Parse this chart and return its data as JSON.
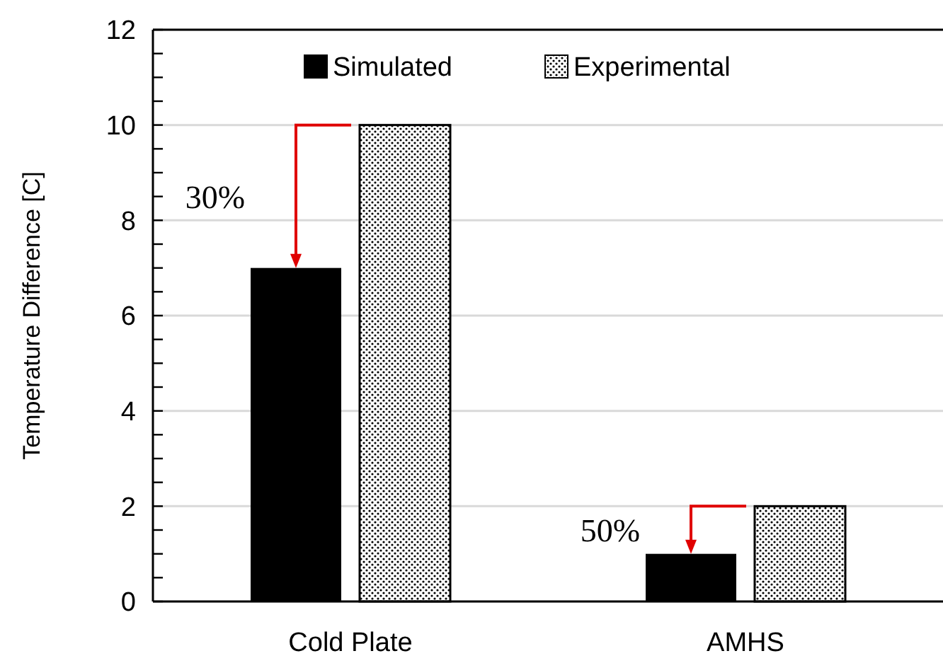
{
  "chart_data": {
    "type": "bar",
    "ylabel": "Temperature Difference [C]",
    "categories": [
      "Cold Plate",
      "AMHS"
    ],
    "series": [
      {
        "name": "Simulated",
        "color": "#000000",
        "values": [
          7,
          1
        ]
      },
      {
        "name": "Experimental",
        "color": "#000000",
        "values": [
          10,
          2
        ]
      }
    ],
    "ylim": [
      0,
      12
    ],
    "yticks": [
      0,
      {
        "value": 0.5,
        "label": null
      },
      2,
      {
        "value": 1,
        "label": null
      },
      {
        "value": 1.5,
        "label": null
      },
      {
        "value": 2.5,
        "label": null
      },
      {
        "value": 3,
        "label": null
      },
      {
        "value": 3.5,
        "label": null
      },
      4,
      {
        "value": 4.5,
        "label": null
      },
      {
        "value": 5,
        "label": null
      },
      {
        "value": 5.5,
        "label": null
      },
      6,
      {
        "value": 6.5,
        "label": null
      },
      {
        "value": 7,
        "label": null
      },
      {
        "value": 7.5,
        "label": null
      },
      8,
      {
        "value": 8.5,
        "label": null
      },
      {
        "value": 9,
        "label": null
      },
      {
        "value": 9.5,
        "label": null
      },
      10,
      {
        "value": 10.5,
        "label": null
      },
      {
        "value": 11,
        "label": null
      },
      {
        "value": 11.5,
        "label": null
      },
      12
    ],
    "grid": "y",
    "legend": "top",
    "annotations": [
      "30%",
      "50%"
    ]
  }
}
